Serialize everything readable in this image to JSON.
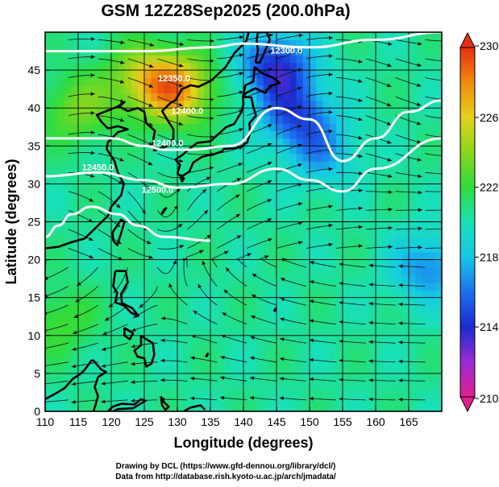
{
  "chart_data": {
    "type": "heatmap",
    "title": "GSM 12Z28Sep2025 (200.0hPa)",
    "xlabel": "Longitude (degrees)",
    "ylabel": "Latitude  (degrees)",
    "xlim": [
      110,
      170
    ],
    "ylim": [
      0,
      50
    ],
    "xticks": [
      "110",
      "115",
      "120",
      "125",
      "130",
      "135",
      "140",
      "145",
      "150",
      "155",
      "160",
      "165"
    ],
    "yticks": [
      "0",
      "5",
      "10",
      "15",
      "20",
      "25",
      "30",
      "35",
      "40",
      "45"
    ],
    "colorbar": {
      "range": [
        210,
        230
      ],
      "ticks": [
        "210",
        "214",
        "218",
        "222",
        "226",
        "230"
      ],
      "colors": [
        "#e0208e",
        "#9a2bd6",
        "#1a2ccf",
        "#1d6ff0",
        "#16c8e6",
        "#19e0b6",
        "#2fdc3c",
        "#8bd61c",
        "#e5d21c",
        "#f08a0c",
        "#e63010"
      ]
    },
    "temperature_field": {
      "background": 220.5,
      "features": [
        {
          "lon": 145.0,
          "lat": 45.5,
          "value": 214.0,
          "note": "cold core"
        },
        {
          "lon": 148.0,
          "lat": 39.0,
          "value": 215.5
        },
        {
          "lon": 152.0,
          "lat": 34.0,
          "value": 217.5
        },
        {
          "lon": 130.0,
          "lat": 42.5,
          "value": 227.0,
          "note": "warm core"
        },
        {
          "lon": 125.0,
          "lat": 44.0,
          "value": 224.5
        },
        {
          "lon": 168.0,
          "lat": 19.0,
          "value": 216.5
        },
        {
          "lon": 115.0,
          "lat": 40.0,
          "value": 223.5
        },
        {
          "lon": 112.0,
          "lat": 12.0,
          "value": 222.5
        }
      ]
    },
    "contours": [
      {
        "label": "12300.0",
        "lat_at_lon": [
          [
            110,
            47.5
          ],
          [
            125,
            47.5
          ],
          [
            135,
            48.0
          ],
          [
            140,
            48.5
          ],
          [
            150,
            48.0
          ],
          [
            160,
            49.0
          ],
          [
            170,
            50.0
          ]
        ]
      },
      {
        "label": "12400.0",
        "lat_at_lon": [
          [
            110,
            36.0
          ],
          [
            120,
            36.0
          ],
          [
            125,
            35.0
          ],
          [
            128,
            34.5
          ],
          [
            132,
            34.5
          ],
          [
            138,
            35.0
          ],
          [
            145,
            40.0
          ],
          [
            150,
            38.5
          ],
          [
            155,
            33.0
          ],
          [
            160,
            36.0
          ],
          [
            165,
            39.5
          ],
          [
            170,
            41.0
          ]
        ]
      },
      {
        "label": "12450.0",
        "lat_at_lon": [
          [
            110,
            31.0
          ],
          [
            118,
            31.5
          ],
          [
            125,
            30.5
          ],
          [
            130,
            29.5
          ],
          [
            138,
            30.0
          ],
          [
            145,
            32.0
          ],
          [
            150,
            30.5
          ],
          [
            155,
            29.0
          ],
          [
            160,
            32.0
          ],
          [
            170,
            36.0
          ]
        ]
      },
      {
        "label": "12500.0",
        "lat_at_lon": [
          [
            110,
            23.0
          ],
          [
            112,
            24.5
          ],
          [
            114,
            26.0
          ],
          [
            117,
            27.0
          ],
          [
            121,
            26.0
          ],
          [
            124,
            24.5
          ],
          [
            128,
            23.0
          ],
          [
            135,
            22.5
          ]
        ]
      }
    ],
    "contour_labels": [
      {
        "text": "12300.0",
        "lon": 146.5,
        "lat": 47.2
      },
      {
        "text": "12350.0",
        "lon": 129.5,
        "lat": 43.5
      },
      {
        "text": "12400.0",
        "lon": 131.5,
        "lat": 39.2
      },
      {
        "text": "12400.0",
        "lon": 128.5,
        "lat": 35.0
      },
      {
        "text": "12500.0",
        "lon": 127.0,
        "lat": 28.8
      },
      {
        "text": "12450.0",
        "lon": 118.0,
        "lat": 31.8
      }
    ],
    "wind": {
      "jet_axis_lat": 40,
      "subtropical_anticyclone_center": [
        128,
        25
      ]
    },
    "grid": true,
    "legend": "colorbar right"
  },
  "credits": {
    "line1": "Drawing by DCL (https://www.gfd-dennou.org/library/dcl/)",
    "line2": "Data from http://database.rish.kyoto-u.ac.jp/arch/jmadata/"
  }
}
